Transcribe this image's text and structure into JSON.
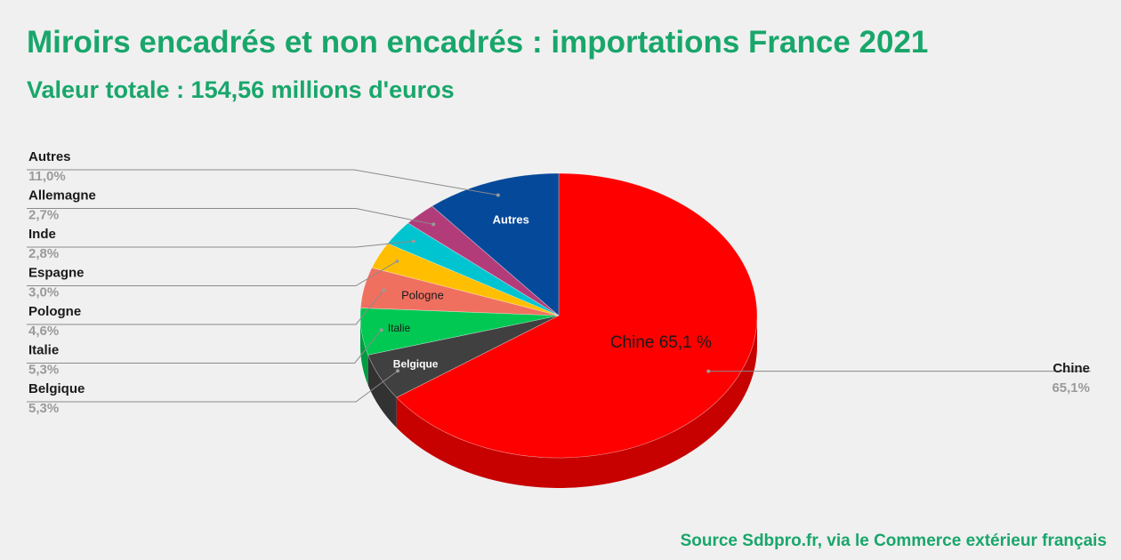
{
  "title": "Miroirs encadrés et non encadrés : importations France 2021",
  "subtitle": "Valeur totale : 154,56 millions d'euros",
  "source": "Source Sdbpro.fr, via le Commerce extérieur français",
  "chart_data": {
    "type": "pie",
    "three_d": true,
    "legend": "callout labels (left and right)",
    "slices": [
      {
        "name": "Chine",
        "value": 65.1,
        "pct_label": "65,1%",
        "inner_label": "Chine 65,1 %",
        "color": "#ff0000"
      },
      {
        "name": "Belgique",
        "value": 5.3,
        "pct_label": "5,3%",
        "inner_label": "Belgique",
        "color": "#404040"
      },
      {
        "name": "Italie",
        "value": 5.3,
        "pct_label": "5,3%",
        "inner_label": "Italie",
        "color": "#00c853"
      },
      {
        "name": "Pologne",
        "value": 4.6,
        "pct_label": "4,6%",
        "inner_label": "Pologne",
        "color": "#f07060"
      },
      {
        "name": "Espagne",
        "value": 3.0,
        "pct_label": "3,0%",
        "inner_label": "",
        "color": "#ffbf00"
      },
      {
        "name": "Inde",
        "value": 2.8,
        "pct_label": "2,8%",
        "inner_label": "",
        "color": "#00c4d0"
      },
      {
        "name": "Allemagne",
        "value": 2.7,
        "pct_label": "2,7%",
        "inner_label": "",
        "color": "#b23c7a"
      },
      {
        "name": "Autres",
        "value": 11.0,
        "pct_label": "11,0%",
        "inner_label": "Autres",
        "color": "#05499a"
      }
    ]
  }
}
